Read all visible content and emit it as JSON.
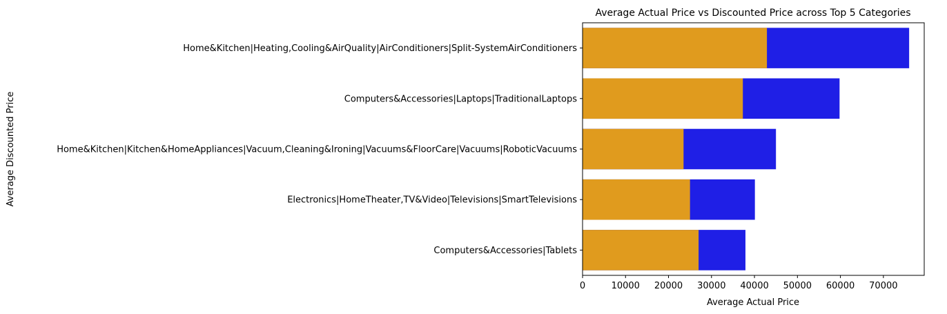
{
  "chart_data": {
    "type": "bar",
    "orientation": "horizontal",
    "stacked": false,
    "title": "Average Actual Price vs Discounted Price across Top 5 Categories",
    "xlabel": "Average Actual Price",
    "ylabel": "Average Discounted Price",
    "xlim": [
      0,
      79500
    ],
    "xticks": [
      0,
      10000,
      20000,
      30000,
      40000,
      50000,
      60000,
      70000
    ],
    "xtick_labels": [
      "0",
      "10000",
      "20000",
      "30000",
      "40000",
      "50000",
      "60000",
      "70000"
    ],
    "grid": false,
    "categories": [
      "Home&Kitchen|Heating,Cooling&AirQuality|AirConditioners|Split-SystemAirConditioners",
      "Computers&Accessories|Laptops|TraditionalLaptops",
      "Home&Kitchen|Kitchen&HomeAppliances|Vacuum,Cleaning&Ironing|Vacuums&FloorCare|Vacuums|RoboticVacuums",
      "Electronics|HomeTheater,TV&Video|Televisions|SmartTelevisions",
      "Computers&Accessories|Tablets"
    ],
    "series": [
      {
        "values": [
          75990,
          59800,
          45000,
          40100,
          37900
        ],
        "color": "#1f1fe6"
      },
      {
        "values": [
          42900,
          37300,
          23500,
          25000,
          27000
        ],
        "color": "#e09b1e"
      }
    ]
  }
}
